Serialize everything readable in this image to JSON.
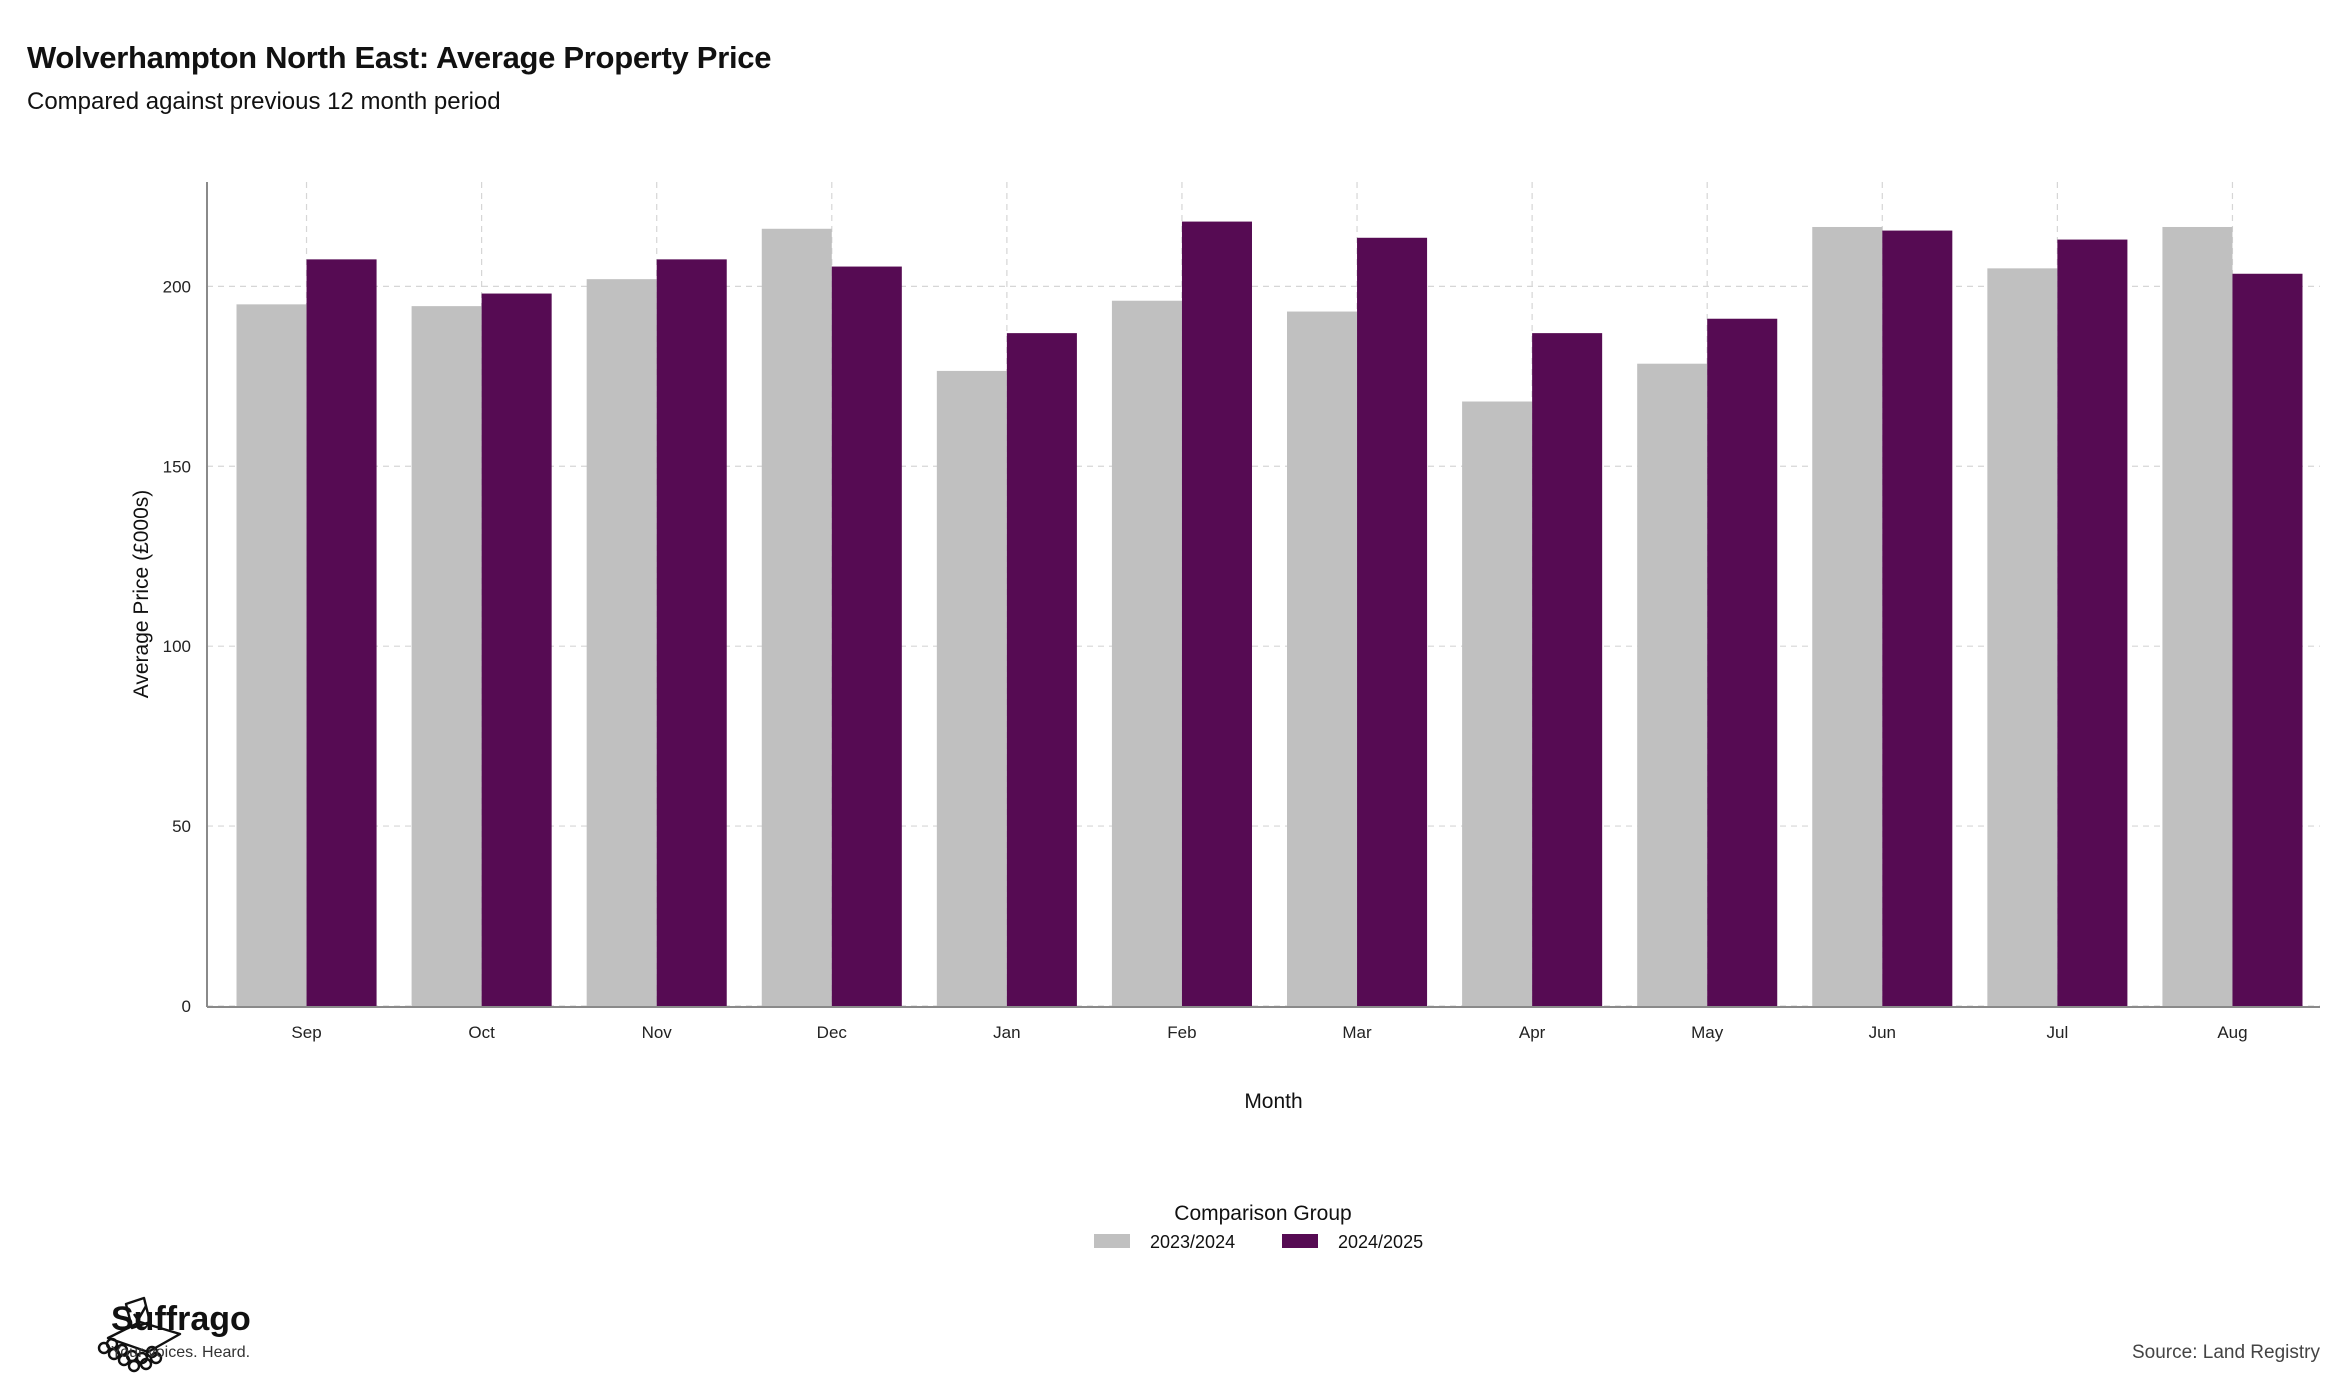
{
  "header": {
    "title": "Wolverhampton North East: Average Property Price",
    "subtitle": "Compared against previous 12 month period"
  },
  "chart_data": {
    "type": "bar",
    "categories": [
      "Sep",
      "Oct",
      "Nov",
      "Dec",
      "Jan",
      "Feb",
      "Mar",
      "Apr",
      "May",
      "Jun",
      "Jul",
      "Aug"
    ],
    "series": [
      {
        "name": "2023/2024",
        "color": "#c0c0c0",
        "values": [
          195,
          194.5,
          202,
          216,
          176.5,
          196,
          193,
          168,
          178.5,
          216.5,
          205,
          216.5
        ]
      },
      {
        "name": "2024/2025",
        "color": "#560b53",
        "values": [
          207.5,
          198,
          207.5,
          205.5,
          187,
          218,
          213.5,
          187,
          191,
          215.5,
          213,
          203.5
        ]
      }
    ],
    "xlabel": "Month",
    "ylabel": "Average Price (£000s)",
    "ylim": [
      0,
      229
    ],
    "yticks": [
      0,
      50,
      100,
      150,
      200
    ],
    "grid": true,
    "legend": {
      "title": "Comparison Group",
      "position": "bottom"
    }
  },
  "branding": {
    "name": "Suffrago",
    "tagline": "Your voices. Heard."
  },
  "footer": {
    "source": "Source: Land Registry"
  }
}
